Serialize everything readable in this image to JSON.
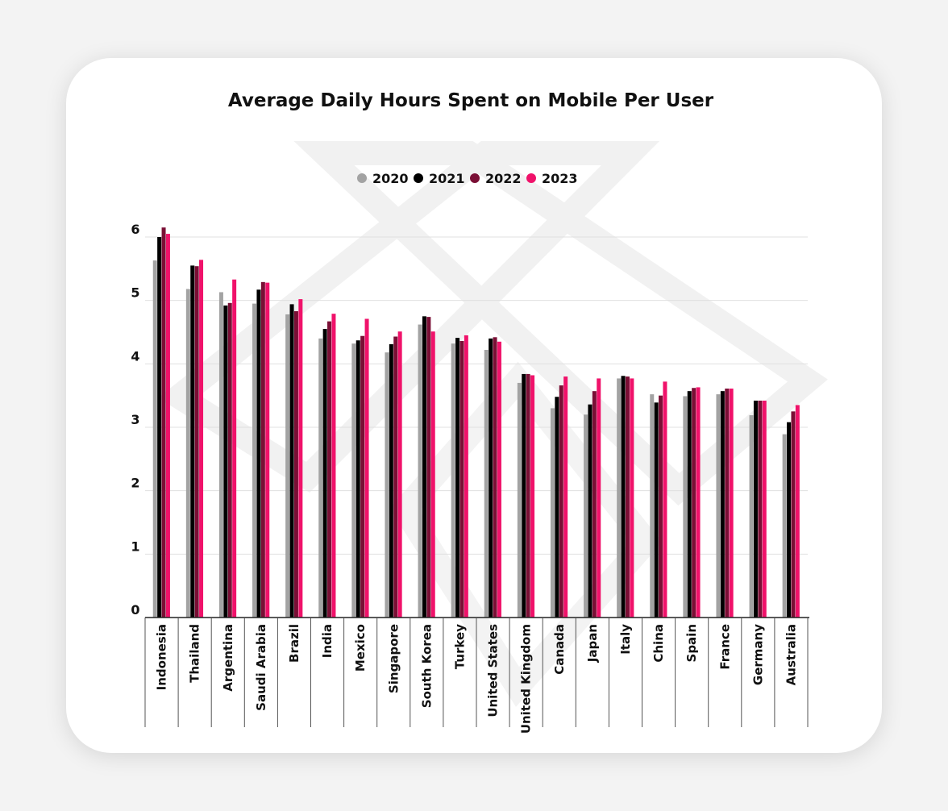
{
  "colors": {
    "2020": "#a3a3a3",
    "2021": "#000000",
    "2022": "#7a0f35",
    "2023": "#f0126a",
    "grid": "#e0e0e0",
    "watermark": "#f2f2f2"
  },
  "chart_data": {
    "type": "bar",
    "title": "Average Daily Hours Spent on Mobile Per User",
    "legend_position": "top-center",
    "grid": true,
    "ylim": [
      0,
      6
    ],
    "yticks": [
      "0",
      "1",
      "2",
      "3",
      "4",
      "5",
      "6"
    ],
    "categories": [
      "Indonesia",
      "Thailand",
      "Argentina",
      "Saudi Arabia",
      "Brazil",
      "India",
      "Mexico",
      "Singapore",
      "South Korea",
      "Turkey",
      "United States",
      "United Kingdom",
      "Canada",
      "Japan",
      "Italy",
      "China",
      "Spain",
      "France",
      "Germany",
      "Australia"
    ],
    "series": [
      {
        "name": "2020",
        "values": [
          5.63,
          5.18,
          5.13,
          4.95,
          4.78,
          4.4,
          4.32,
          4.18,
          4.62,
          4.32,
          4.22,
          3.7,
          3.3,
          3.2,
          3.77,
          3.52,
          3.49,
          3.52,
          3.19,
          2.89
        ]
      },
      {
        "name": "2021",
        "values": [
          6.0,
          5.55,
          4.92,
          5.17,
          4.94,
          4.55,
          4.37,
          4.31,
          4.75,
          4.41,
          4.4,
          3.84,
          3.48,
          3.36,
          3.81,
          3.39,
          3.57,
          3.57,
          3.42,
          3.08
        ]
      },
      {
        "name": "2022",
        "values": [
          6.15,
          5.54,
          4.96,
          5.29,
          4.83,
          4.67,
          4.44,
          4.43,
          4.74,
          4.36,
          4.42,
          3.84,
          3.66,
          3.57,
          3.8,
          3.5,
          3.62,
          3.61,
          3.42,
          3.25
        ]
      },
      {
        "name": "2023",
        "values": [
          6.05,
          5.64,
          5.33,
          5.28,
          5.02,
          4.79,
          4.71,
          4.51,
          4.51,
          4.45,
          4.35,
          3.82,
          3.8,
          3.77,
          3.77,
          3.72,
          3.63,
          3.61,
          3.42,
          3.35
        ]
      }
    ]
  }
}
